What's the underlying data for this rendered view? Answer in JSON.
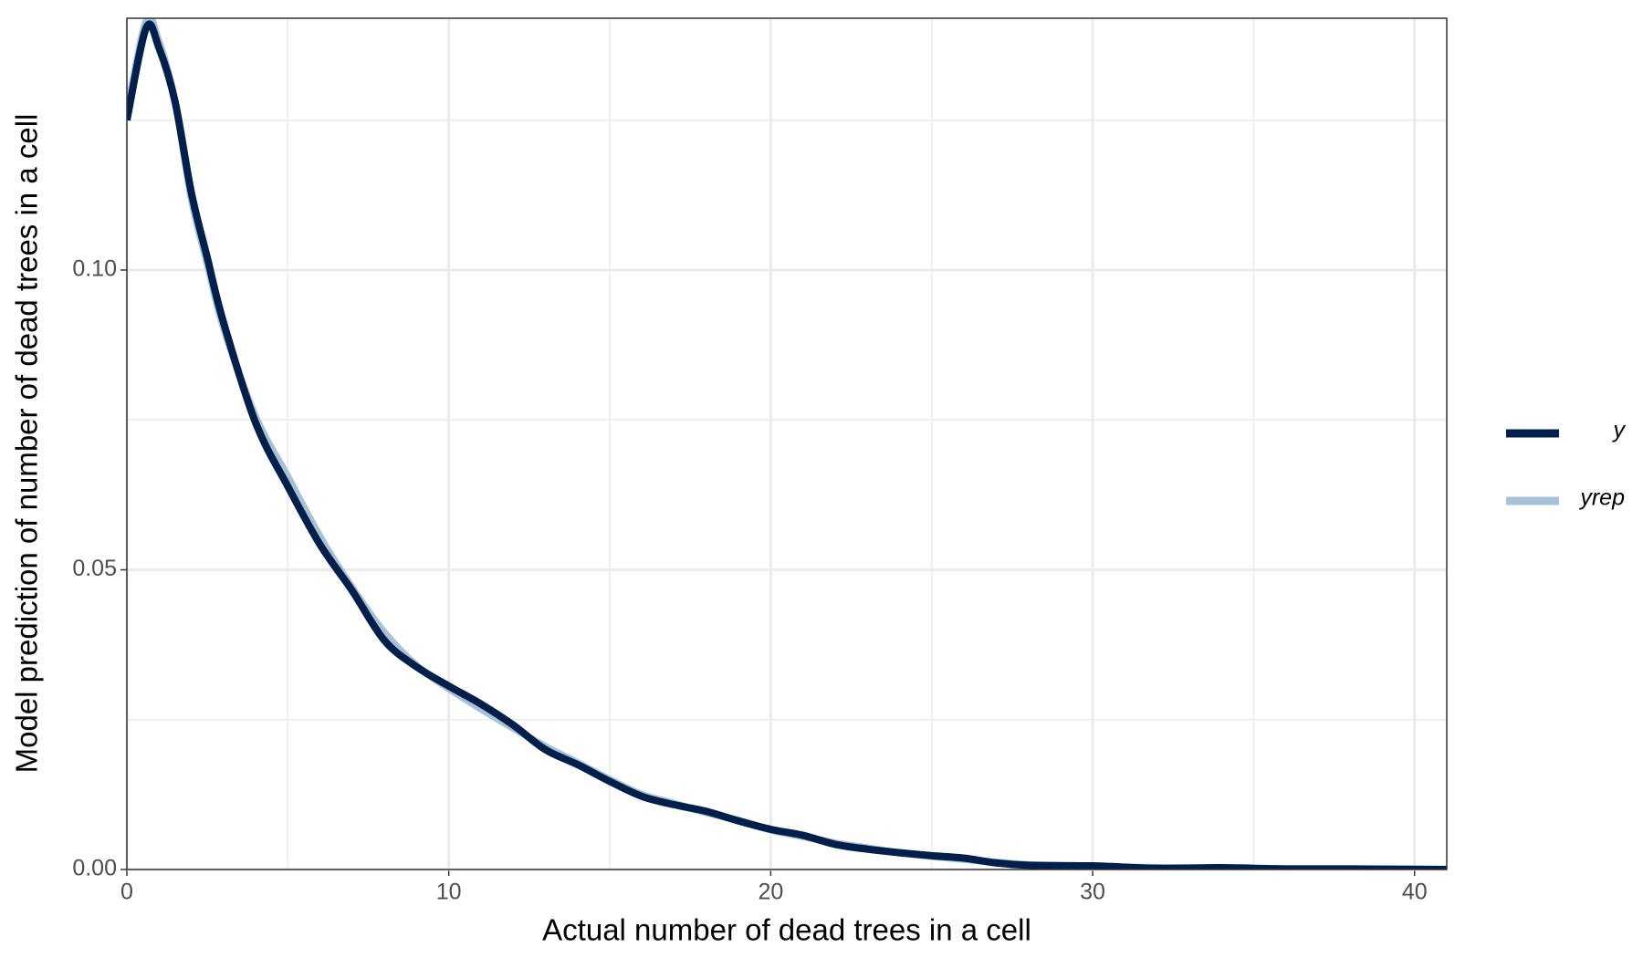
{
  "chart_data": {
    "type": "line",
    "xlabel": "Actual number of dead trees in a cell",
    "ylabel": "Model prediction of number of dead trees in a cell",
    "x": [
      0,
      0.6,
      1,
      1.5,
      2,
      2.5,
      3,
      4,
      5,
      6,
      7,
      8,
      9,
      10,
      11,
      12,
      13,
      14,
      15,
      16,
      17,
      18,
      19,
      20,
      21,
      22,
      23,
      24,
      25,
      26,
      27,
      28,
      30,
      32,
      34,
      36,
      38,
      41
    ],
    "series": [
      {
        "name": "yrep",
        "color": "#a7c1d6",
        "width": 8,
        "values": [
          0.126,
          0.1415,
          0.138,
          0.128,
          0.112,
          0.101,
          0.0905,
          0.0755,
          0.0655,
          0.0555,
          0.047,
          0.0395,
          0.034,
          0.0302,
          0.0268,
          0.0236,
          0.0205,
          0.0178,
          0.015,
          0.0125,
          0.011,
          0.0095,
          0.0082,
          0.0066,
          0.0055,
          0.0044,
          0.0036,
          0.0028,
          0.0022,
          0.0017,
          0.0012,
          0.0008,
          0.0005,
          0.0003,
          0.0002,
          0.0001,
          0.0001,
          0.0
        ]
      },
      {
        "name": "y",
        "color": "#011f4b",
        "width": 8,
        "values": [
          0.125,
          0.1404,
          0.137,
          0.128,
          0.113,
          0.102,
          0.0913,
          0.0745,
          0.0639,
          0.0542,
          0.0465,
          0.0382,
          0.0338,
          0.0306,
          0.0276,
          0.0241,
          0.02,
          0.0175,
          0.0147,
          0.0122,
          0.0108,
          0.0097,
          0.0081,
          0.0067,
          0.0057,
          0.0042,
          0.0034,
          0.0028,
          0.0023,
          0.0019,
          0.0011,
          0.0007,
          0.0006,
          0.0002,
          0.0003,
          0.0001,
          0.0001,
          0.0
        ]
      }
    ],
    "xlim": [
      0,
      41
    ],
    "ylim": [
      0,
      0.142
    ],
    "xticks": [
      0,
      10,
      20,
      30,
      40
    ],
    "yticks": [
      {
        "value": 0,
        "label": "0.00"
      },
      {
        "value": 0.05,
        "label": "0.05"
      },
      {
        "value": 0.1,
        "label": "0.10"
      }
    ],
    "xminor": [
      5,
      15,
      25,
      35
    ],
    "yminor": [
      0.025,
      0.075,
      0.125
    ],
    "grid": true,
    "legend": "right"
  }
}
